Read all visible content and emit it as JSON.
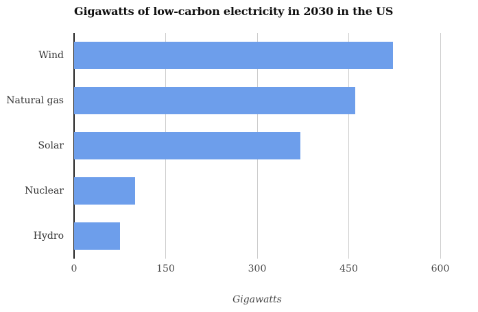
{
  "chart_data": {
    "type": "bar",
    "orientation": "horizontal",
    "title": "Gigawatts of low-carbon electricity in 2030 in the US",
    "categories": [
      "Wind",
      "Natural gas",
      "Solar",
      "Nuclear",
      "Hydro"
    ],
    "values": [
      523,
      461,
      371,
      100,
      75
    ],
    "xlabel": "Gigawatts",
    "ylabel": "",
    "xlim": [
      0,
      600
    ],
    "xticks": [
      0,
      150,
      300,
      450,
      600
    ],
    "grid": "vertical-gridlines",
    "legend": "none",
    "bar_color": "#6d9eeb",
    "axis_color": "#212121",
    "gridline_color": "#cccccc",
    "tick_label_color": "#494949",
    "category_label_color": "#333333",
    "title_color": "#0f0f0f",
    "background_color": "#ffffff"
  }
}
